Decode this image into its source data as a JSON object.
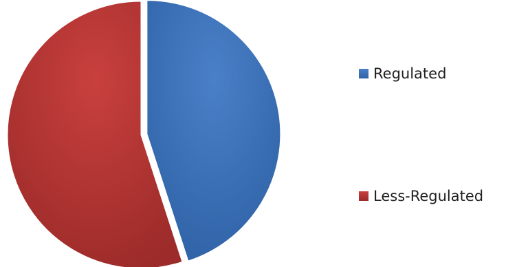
{
  "chart_data": {
    "type": "pie",
    "title": "",
    "legend_position": "right",
    "slices": [
      {
        "label": "Regulated",
        "value": 45,
        "color": "#4a80c8",
        "color_dark": "#2f62a6",
        "exploded": true
      },
      {
        "label": "Less-Regulated",
        "value": 55,
        "color": "#c8403e",
        "color_dark": "#9c2b29",
        "exploded": false
      }
    ]
  }
}
